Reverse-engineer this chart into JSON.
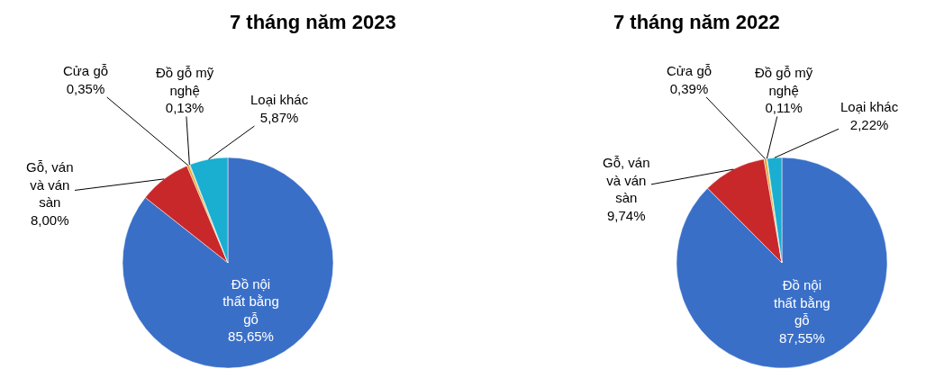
{
  "chart_data": [
    {
      "type": "pie",
      "title": "7 tháng năm 2023",
      "categories": [
        "Đồ nội\nthất bằng\ngỗ",
        "Gỗ, ván\nvà ván\nsàn",
        "Cửa gỗ",
        "Đồ gỗ mỹ\nnghệ",
        "Loại khác"
      ],
      "values": [
        85.65,
        8.0,
        0.35,
        0.13,
        5.87
      ],
      "value_labels": [
        "85,65%",
        "8,00%",
        "0,35%",
        "0,13%",
        "5,87%"
      ],
      "colors": [
        "#3a6fc8",
        "#c8282a",
        "#e8a030",
        "#8cb040",
        "#1aaed0"
      ],
      "legend": false
    },
    {
      "type": "pie",
      "title": "7 tháng năm 2022",
      "categories": [
        "Đồ nội\nthất bằng\ngỗ",
        "Gỗ, ván\nvà ván\nsàn",
        "Cửa gỗ",
        "Đồ gỗ mỹ\nnghệ",
        "Loại khác"
      ],
      "values": [
        87.55,
        9.74,
        0.39,
        0.11,
        2.22
      ],
      "value_labels": [
        "87,55%",
        "9,74%",
        "0,39%",
        "0,11%",
        "2,22%"
      ],
      "colors": [
        "#3a6fc8",
        "#c8282a",
        "#e8a030",
        "#8cb040",
        "#1aaed0"
      ],
      "legend": false
    }
  ]
}
